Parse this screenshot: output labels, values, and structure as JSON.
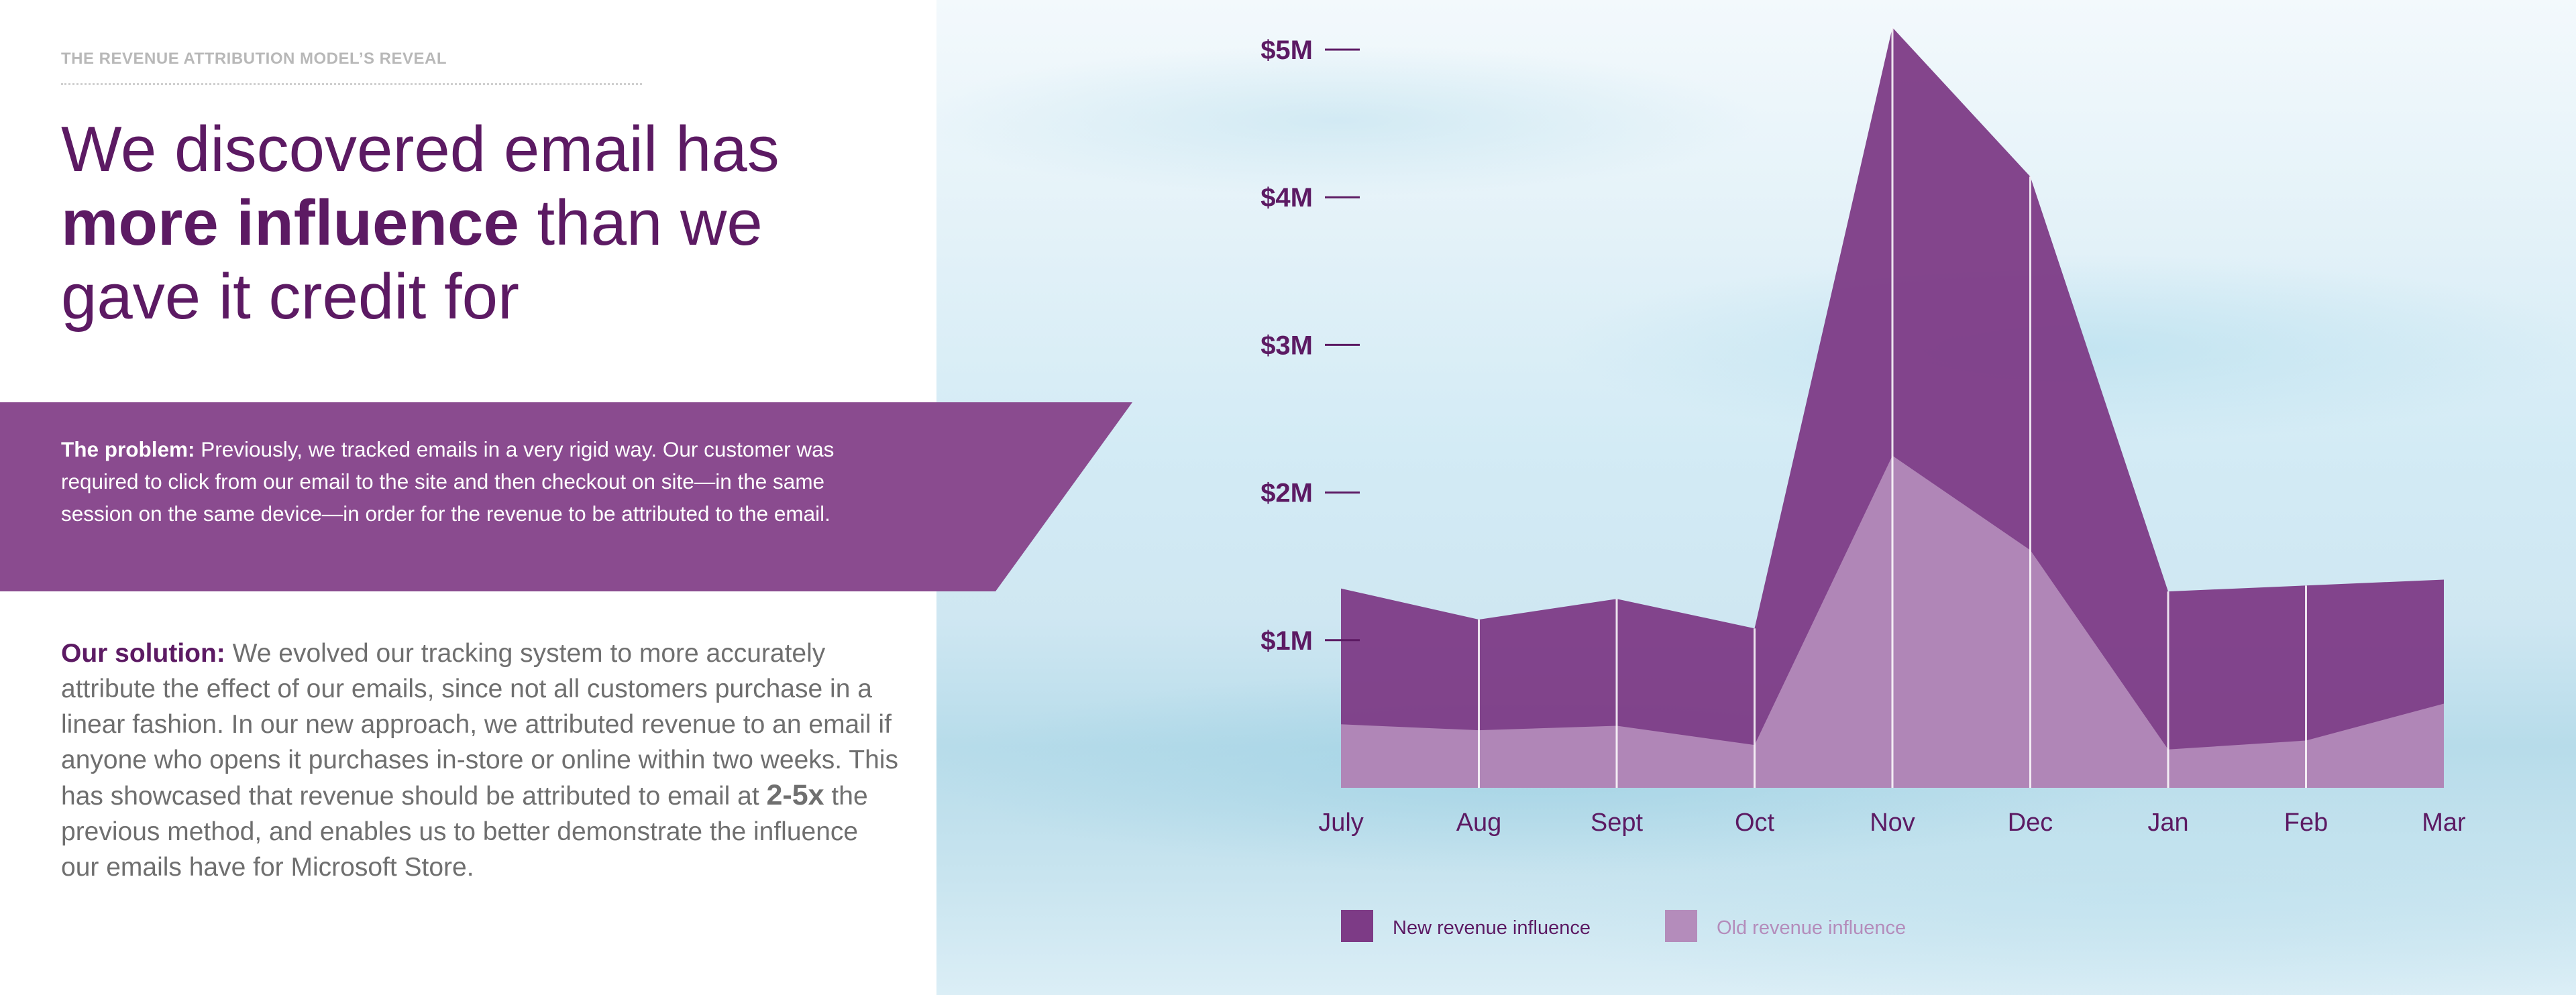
{
  "page": {
    "eyebrow": "THE REVENUE ATTRIBUTION MODEL’S REVEAL",
    "headline": {
      "part1": "We discovered email has ",
      "strong": "more influence",
      "part2": " than we gave it credit for"
    },
    "problem": {
      "lead": "The problem:",
      "body": " Previously, we tracked emails in a very rigid way. Our customer was required to click from our email to the site and then checkout on site—in the same session on the same device—in order for the revenue to be attributed to the email."
    },
    "solution": {
      "lead": "Our solution:",
      "body1": " We evolved our tracking system to more accurately attribute the effect of our emails, since not all customers purchase in a linear fashion. In our new approach, we attributed revenue to an email if anyone who opens it purchases in-store or online within two weeks. This has showcased that revenue should be attributed to email at ",
      "emph": "2-5x",
      "body2": " the previous method, and enables us to better demonstrate the influence our emails have for Microsoft Store."
    },
    "colors": {
      "brand_purple": "#5c1a63",
      "band_purple": "#8a4b8f"
    }
  },
  "chart_data": {
    "type": "area",
    "categories": [
      "July",
      "Aug",
      "Sept",
      "Oct",
      "Nov",
      "Dec",
      "Jan",
      "Feb",
      "Mar"
    ],
    "y_ticks": [
      {
        "value": 1,
        "label": "$1M"
      },
      {
        "value": 2,
        "label": "$2M"
      },
      {
        "value": 3,
        "label": "$3M"
      },
      {
        "value": 4,
        "label": "$4M"
      },
      {
        "value": 5,
        "label": "$5M"
      }
    ],
    "ylim": [
      0,
      5.2
    ],
    "series": [
      {
        "name": "New revenue influence",
        "color": "#7d3b86",
        "values": [
          1.35,
          1.14,
          1.28,
          1.08,
          5.15,
          4.14,
          1.33,
          1.37,
          1.41
        ]
      },
      {
        "name": "Old revenue influence",
        "color": "#b48cbb",
        "values": [
          0.43,
          0.39,
          0.42,
          0.29,
          2.25,
          1.61,
          0.26,
          0.32,
          0.57
        ]
      }
    ],
    "legend_position": "bottom",
    "grid": false
  }
}
